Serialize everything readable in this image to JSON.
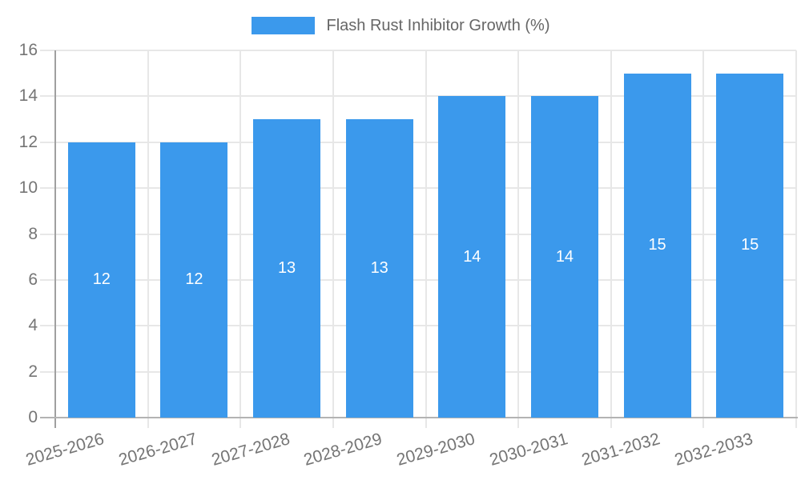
{
  "legend": {
    "position": "top"
  },
  "chart_data": {
    "type": "bar",
    "title": "",
    "xlabel": "",
    "ylabel": "",
    "categories": [
      "2025-2026",
      "2026-2027",
      "2027-2028",
      "2028-2029",
      "2029-2030",
      "2030-2031",
      "2031-2032",
      "2032-2033"
    ],
    "series": [
      {
        "name": "Flash Rust Inhibitor Growth (%)",
        "values": [
          12,
          12,
          13,
          13,
          14,
          14,
          15,
          15
        ]
      }
    ],
    "ylim": [
      0,
      16
    ],
    "yticks": [
      0,
      2,
      4,
      6,
      8,
      10,
      12,
      14,
      16
    ],
    "grid": true,
    "legend_position": "top",
    "x_label_rotation_deg": -16,
    "value_labels": {
      "show": true,
      "position": "inside-center",
      "color": "#ffffff"
    },
    "colors": {
      "bar": "#3b99ec",
      "grid_line": "#e7e7e7",
      "baseline": "#b3b3b3",
      "y_axis_line": "#a0a0a0",
      "tick_text": "#757575",
      "legend_text": "#666666",
      "background": "#ffffff"
    }
  }
}
